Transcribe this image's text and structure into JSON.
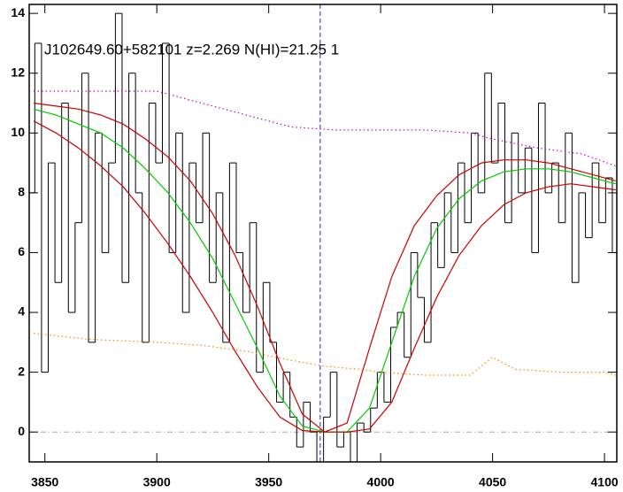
{
  "chart_data": {
    "type": "line",
    "annotation": "J102649.60+582101 z=2.269 N(HI)=21.25 1",
    "xlim": [
      3843,
      4105.5
    ],
    "ylim": [
      -1,
      14.3
    ],
    "xticks": [
      3850,
      3900,
      3950,
      4000,
      4050,
      4100
    ],
    "yticks": [
      0,
      2,
      4,
      6,
      8,
      10,
      12,
      14
    ],
    "vlines": [
      {
        "value": 3973,
        "color": "#2222cc",
        "style": "dashed"
      }
    ],
    "hlines": [
      {
        "value": 0,
        "color": "#aaaaaa",
        "style": "dashdot"
      }
    ],
    "series": [
      {
        "color": "#000000",
        "style": "steps",
        "x": [
          3844,
          3847,
          3850,
          3853,
          3856,
          3859,
          3862,
          3865,
          3868,
          3871,
          3874,
          3877,
          3880,
          3883,
          3886,
          3889,
          3892,
          3895,
          3898,
          3901,
          3904,
          3907,
          3910,
          3913,
          3916,
          3919,
          3922,
          3925,
          3928,
          3931,
          3934,
          3937,
          3940,
          3943,
          3946,
          3949,
          3952,
          3955,
          3958,
          3961,
          3964,
          3967,
          3970,
          3973,
          3976,
          3979,
          3982,
          3985,
          3988,
          3991,
          3994,
          3997,
          4000,
          4003,
          4006,
          4009,
          4012,
          4015,
          4018,
          4021,
          4024,
          4027,
          4030,
          4033,
          4036,
          4039,
          4042,
          4045,
          4048,
          4051,
          4054,
          4057,
          4060,
          4063,
          4066,
          4069,
          4072,
          4075,
          4078,
          4081,
          4084,
          4087,
          4090,
          4093,
          4096,
          4099,
          4102,
          4105
        ],
        "values": [
          8,
          13,
          2,
          9,
          5,
          11,
          4,
          7,
          12,
          3,
          10,
          6,
          9,
          14,
          5,
          12,
          8,
          3,
          11,
          9,
          13,
          6,
          10,
          4,
          9,
          7,
          10,
          5,
          8,
          3,
          9,
          6,
          4,
          7,
          2,
          5,
          3,
          1,
          2,
          0.5,
          -0.5,
          1,
          0,
          -1,
          0.5,
          2,
          -0.5,
          0,
          -1,
          0.3,
          0,
          0.8,
          2,
          1,
          3.5,
          4,
          2.5,
          6,
          4.5,
          3,
          7,
          5.5,
          8,
          6,
          9,
          7,
          10,
          8,
          12,
          9,
          11,
          7,
          10,
          8,
          9.5,
          6,
          11,
          8,
          9,
          7,
          10,
          5,
          8,
          6.5,
          9,
          7,
          8.5,
          6
        ]
      },
      {
        "color": "#00cc00",
        "style": "solid",
        "x": [
          3845,
          3855,
          3865,
          3875,
          3885,
          3895,
          3905,
          3915,
          3925,
          3935,
          3945,
          3955,
          3965,
          3975,
          3985,
          3995,
          4005,
          4015,
          4025,
          4035,
          4045,
          4055,
          4065,
          4075,
          4085,
          4095,
          4105
        ],
        "values": [
          10.8,
          10.6,
          10.3,
          10.0,
          9.5,
          8.8,
          8.0,
          7.0,
          5.8,
          4.3,
          2.8,
          1.2,
          0.2,
          0,
          0,
          0.8,
          3.0,
          5.2,
          6.8,
          7.8,
          8.4,
          8.7,
          8.8,
          8.8,
          8.7,
          8.5,
          8.3
        ]
      },
      {
        "color": "#cc0000",
        "style": "solid",
        "x": [
          3845,
          3855,
          3865,
          3875,
          3885,
          3895,
          3905,
          3915,
          3925,
          3935,
          3945,
          3955,
          3965,
          3975,
          3985,
          3995,
          4005,
          4015,
          4025,
          4035,
          4045,
          4055,
          4065,
          4075,
          4085,
          4095,
          4105
        ],
        "values": [
          11.0,
          10.9,
          10.8,
          10.6,
          10.3,
          9.8,
          9.2,
          8.4,
          7.3,
          5.9,
          4.2,
          2.3,
          0.6,
          0,
          0.3,
          2.8,
          5.2,
          6.9,
          7.9,
          8.6,
          9.0,
          9.1,
          9.1,
          9.0,
          8.8,
          8.6,
          8.4
        ]
      },
      {
        "color": "#cc0000",
        "style": "solid",
        "x": [
          3845,
          3855,
          3865,
          3875,
          3885,
          3895,
          3905,
          3915,
          3925,
          3935,
          3945,
          3955,
          3965,
          3975,
          3985,
          3995,
          4005,
          4015,
          4025,
          4035,
          4045,
          4055,
          4065,
          4075,
          4085,
          4095,
          4105
        ],
        "values": [
          10.4,
          10.0,
          9.5,
          8.9,
          8.2,
          7.3,
          6.3,
          5.2,
          4.0,
          2.7,
          1.5,
          0.5,
          0.05,
          0,
          0,
          0.1,
          1.0,
          2.8,
          4.5,
          5.9,
          6.9,
          7.6,
          8.0,
          8.2,
          8.3,
          8.2,
          8.1
        ]
      },
      {
        "color": "#cc00cc",
        "style": "dotted",
        "x": [
          3845,
          3860,
          3880,
          3900,
          3920,
          3940,
          3960,
          3980,
          4000,
          4020,
          4040,
          4050,
          4070,
          4090,
          4105
        ],
        "values": [
          11.4,
          11.4,
          11.4,
          11.4,
          11.0,
          10.6,
          10.2,
          10.1,
          10.1,
          10.1,
          10.0,
          9.8,
          9.5,
          9.3,
          8.9
        ]
      },
      {
        "color": "#ff8800",
        "style": "dotted",
        "x": [
          3845,
          3870,
          3900,
          3920,
          3940,
          3960,
          3975,
          3990,
          4000,
          4020,
          4040,
          4050,
          4060,
          4080,
          4100,
          4105
        ],
        "values": [
          3.3,
          3.1,
          3.0,
          2.9,
          2.7,
          2.4,
          2.2,
          2.1,
          2.0,
          1.9,
          1.9,
          2.5,
          2.1,
          2.0,
          2.0,
          1.9
        ]
      }
    ]
  }
}
